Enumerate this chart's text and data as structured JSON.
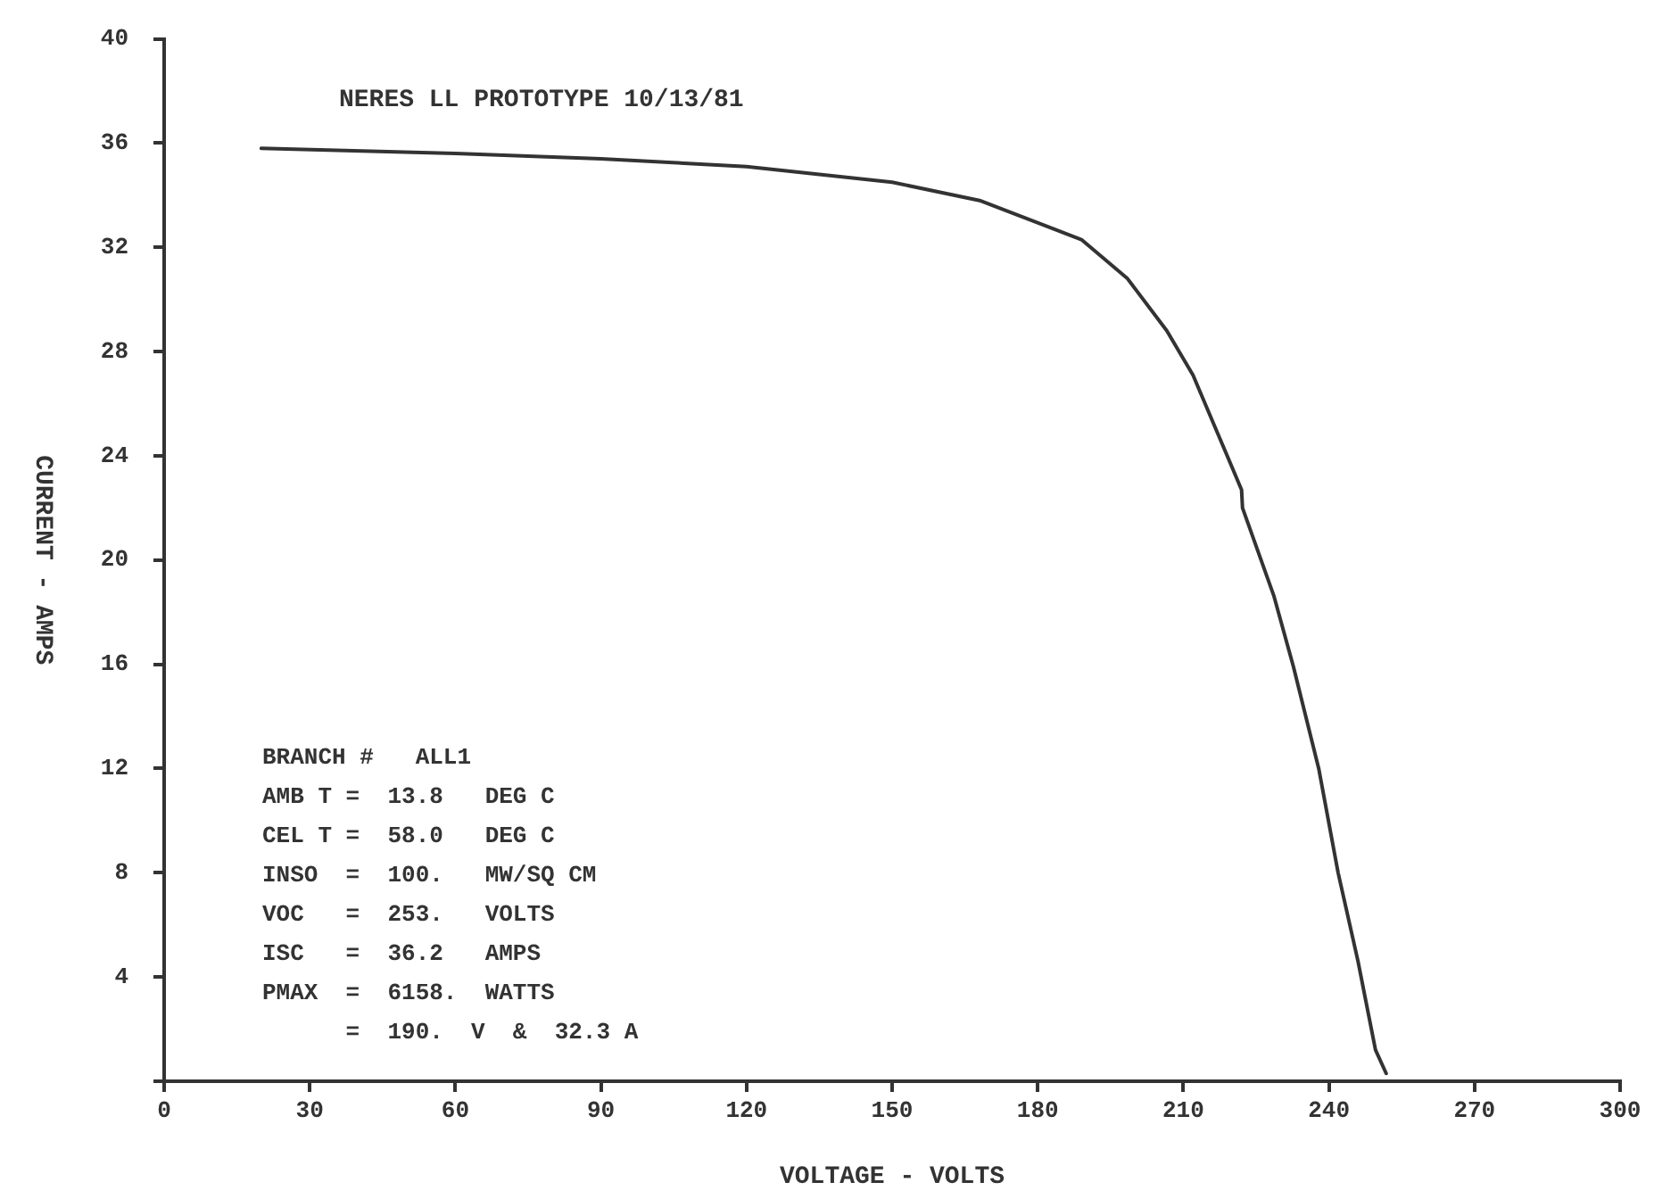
{
  "chart_data": {
    "type": "line",
    "title": "NERES LL PROTOTYPE 10/13/81",
    "xlabel": "VOLTAGE - VOLTS",
    "ylabel": "CURRENT - AMPS",
    "annotations": [
      "BRANCH #   ALL1",
      "AMB T =  13.8   DEG C",
      "CEL T =  58.0   DEG C",
      "INSO  =  100.   MW/SQ CM",
      "VOC   =  253.   VOLTS",
      "ISC   =  36.2   AMPS",
      "PMAX  =  6158.  WATTS",
      "      =  190.  V  &  32.3 A"
    ],
    "series": [
      {
        "color": "#333333",
        "x": [
          20,
          60,
          90,
          120,
          150,
          168,
          189,
          198.5,
          206.6,
          212,
          217,
          222,
          222.2,
          228.7,
          232.7,
          237.9,
          241.9,
          246,
          249.6,
          251.8
        ],
        "values": [
          35.8,
          35.6,
          35.4,
          35.1,
          34.5,
          33.8,
          32.3,
          30.8,
          28.8,
          27.1,
          24.9,
          22.7,
          22.0,
          18.6,
          15.9,
          12.0,
          8.0,
          4.6,
          1.2,
          0.3
        ]
      }
    ],
    "xlim": [
      0,
      300
    ],
    "xticks": [
      0,
      30,
      60,
      90,
      120,
      150,
      180,
      210,
      240,
      270,
      300
    ],
    "ylim": [
      0,
      40
    ],
    "yticks": [
      {
        "value": 0,
        "label": null
      },
      4,
      8,
      12,
      16,
      20,
      24,
      28,
      32,
      36,
      40
    ],
    "grid": false,
    "legend": false,
    "marker": "none",
    "line_style": "solid"
  }
}
